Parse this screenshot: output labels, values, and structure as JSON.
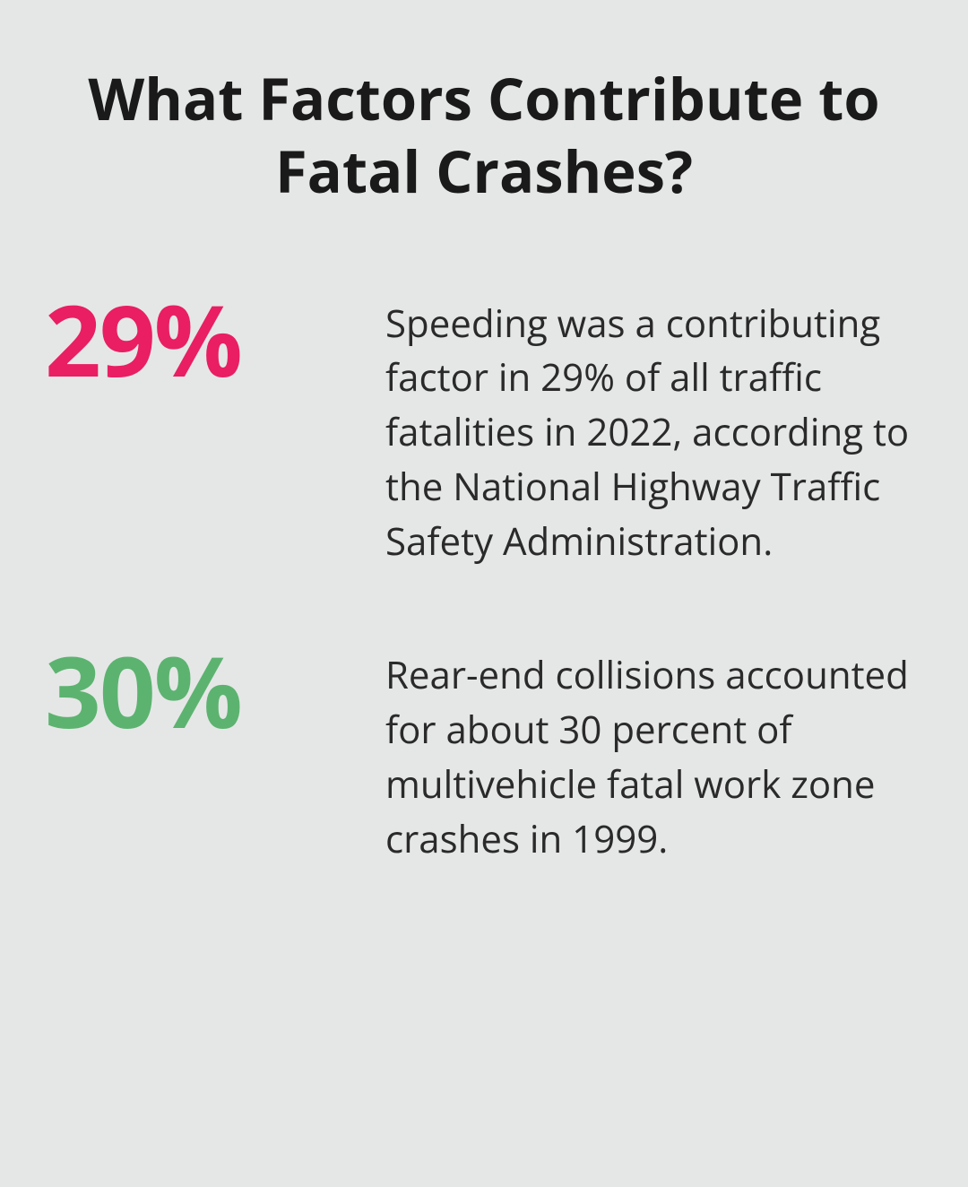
{
  "title": "What Factors Contribute to Fatal Crashes?",
  "background_color": "#e5e7e6",
  "title_style": {
    "font_size": 65,
    "font_weight": 700,
    "color": "#1a1a1a",
    "text_align": "center"
  },
  "stats": [
    {
      "value": "29%",
      "value_color": "#e91e63",
      "description": "Speeding was a contributing factor in 29% of all traffic fatalities in 2022, according to the National Highway Traffic Safety Administration."
    },
    {
      "value": "30%",
      "value_color": "#5cb370",
      "description": "Rear-end collisions accounted for about 30 percent of multivehicle fatal work zone crashes in 1999."
    }
  ],
  "stat_value_style": {
    "font_size": 110,
    "font_weight": 700
  },
  "stat_description_style": {
    "font_size": 42,
    "color": "#2a2a2a",
    "font_weight": 400
  }
}
